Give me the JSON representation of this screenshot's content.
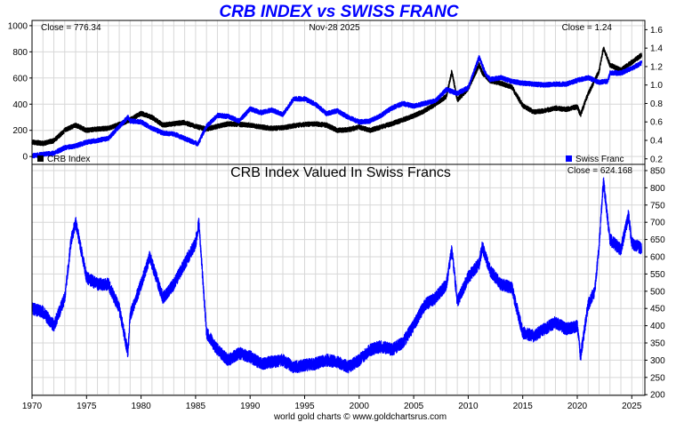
{
  "colors": {
    "crb": "#000000",
    "chf": "#0000ff",
    "ratio": "#0000ff",
    "grid": "#d7d7d7",
    "title": "#0000ff"
  },
  "header": {
    "title": "CRB INDEX vs SWISS FRANC"
  },
  "footer": {
    "credit": "world gold charts © www.goldchartsrus.com"
  },
  "chart_data": [
    {
      "type": "line",
      "title": "CRB INDEX vs SWISS FRANC",
      "date_label": "Nov-28  2025",
      "x_ticks": [
        1970,
        1975,
        1980,
        1985,
        1990,
        1995,
        2000,
        2005,
        2010,
        2015,
        2020,
        2025
      ],
      "xlim": [
        1970,
        2026.2
      ],
      "y_left": {
        "ticks": [
          0,
          200,
          400,
          600,
          800,
          1000
        ],
        "ylim": [
          -60,
          1040
        ]
      },
      "y_right": {
        "ticks": [
          0.2,
          0.4,
          0.6,
          0.8,
          1.0,
          1.2,
          1.4,
          1.6
        ],
        "ylim": [
          0.14,
          1.7
        ]
      },
      "legend": [
        "CRB Index",
        "Swiss Franc"
      ],
      "close_left": "Close = 776.34",
      "close_right": "Close = 1.24",
      "series": [
        {
          "name": "CRB Index",
          "axis": "left",
          "x": [
            1970,
            1971,
            1972,
            1973,
            1974,
            1975,
            1976,
            1977,
            1978,
            1979,
            1980,
            1981,
            1982,
            1983,
            1984,
            1985,
            1986,
            1987,
            1988,
            1989,
            1990,
            1991,
            1992,
            1993,
            1994,
            1995,
            1996,
            1997,
            1998,
            1999,
            2000,
            2001,
            2002,
            2003,
            2004,
            2005,
            2006,
            2007,
            2008,
            2008.5,
            2009,
            2010,
            2011,
            2011.3,
            2012,
            2013,
            2014,
            2015,
            2016,
            2017,
            2018,
            2019,
            2020,
            2020.3,
            2021,
            2022,
            2022.4,
            2023,
            2024,
            2025,
            2025.9
          ],
          "y": [
            110,
            100,
            120,
            200,
            240,
            200,
            210,
            215,
            245,
            280,
            330,
            300,
            240,
            250,
            260,
            230,
            210,
            230,
            250,
            245,
            240,
            225,
            215,
            220,
            235,
            245,
            250,
            240,
            200,
            205,
            225,
            200,
            225,
            250,
            280,
            310,
            350,
            400,
            460,
            650,
            430,
            520,
            700,
            640,
            580,
            560,
            530,
            390,
            340,
            350,
            370,
            360,
            380,
            320,
            480,
            650,
            830,
            700,
            660,
            720,
            776
          ]
        },
        {
          "name": "Swiss Franc",
          "axis": "right",
          "x": [
            1970,
            1971,
            1972,
            1973,
            1974,
            1975,
            1976,
            1977,
            1978,
            1978.8,
            1979,
            1980,
            1981,
            1982,
            1983,
            1984,
            1985.2,
            1986,
            1987,
            1988,
            1989,
            1990,
            1991,
            1992,
            1993,
            1994,
            1995,
            1996,
            1997,
            1998,
            1999,
            2000,
            2001,
            2002,
            2003,
            2004,
            2005,
            2006,
            2007,
            2008,
            2009,
            2010,
            2011,
            2011.6,
            2012,
            2013,
            2014,
            2015,
            2016,
            2017,
            2018,
            2019,
            2020,
            2021,
            2022,
            2022.8,
            2023,
            2024,
            2025,
            2025.9
          ],
          "y": [
            0.23,
            0.25,
            0.26,
            0.32,
            0.34,
            0.38,
            0.4,
            0.42,
            0.55,
            0.65,
            0.61,
            0.6,
            0.53,
            0.48,
            0.47,
            0.42,
            0.36,
            0.55,
            0.67,
            0.66,
            0.61,
            0.74,
            0.7,
            0.73,
            0.68,
            0.85,
            0.85,
            0.79,
            0.69,
            0.72,
            0.65,
            0.6,
            0.61,
            0.67,
            0.75,
            0.8,
            0.77,
            0.8,
            0.83,
            0.95,
            0.91,
            0.97,
            1.3,
            1.12,
            1.06,
            1.08,
            1.04,
            1.02,
            1.01,
            1.0,
            1.01,
            1.01,
            1.05,
            1.08,
            1.03,
            1.04,
            1.13,
            1.13,
            1.18,
            1.24
          ]
        }
      ]
    },
    {
      "type": "line",
      "title": "CRB Index Valued In Swiss Francs",
      "close": "Close = 624.168",
      "x_ticks": [
        1970,
        1975,
        1980,
        1985,
        1990,
        1995,
        2000,
        2005,
        2010,
        2015,
        2020,
        2025
      ],
      "xlim": [
        1970,
        2026.2
      ],
      "y_right": {
        "ticks": [
          200,
          250,
          300,
          350,
          400,
          450,
          500,
          550,
          600,
          650,
          700,
          750,
          800,
          850
        ],
        "ylim": [
          198,
          868
        ]
      },
      "series": [
        {
          "name": "CRB Index Valued In Swiss Francs",
          "x": [
            1970,
            1971,
            1972,
            1973,
            1973.6,
            1974,
            1975,
            1976,
            1977,
            1978,
            1978.8,
            1979,
            1980,
            1980.8,
            1981,
            1982,
            1983,
            1984,
            1985,
            1985.3,
            1986,
            1987,
            1988,
            1989,
            1990,
            1991,
            1992,
            1993,
            1994,
            1995,
            1996,
            1997,
            1998,
            1999,
            2000,
            2001,
            2002,
            2003,
            2004,
            2005,
            2006,
            2007,
            2008,
            2008.5,
            2009,
            2010,
            2011,
            2011.3,
            2012,
            2013,
            2014,
            2015,
            2016,
            2017,
            2018,
            2019,
            2020,
            2020.3,
            2021,
            2021.6,
            2022,
            2022.4,
            2023,
            2024,
            2024.7,
            2025,
            2025.9
          ],
          "y": [
            450,
            440,
            400,
            480,
            650,
            700,
            540,
            520,
            520,
            450,
            320,
            430,
            520,
            600,
            580,
            480,
            520,
            580,
            640,
            700,
            380,
            330,
            300,
            320,
            310,
            290,
            295,
            300,
            280,
            285,
            290,
            300,
            295,
            280,
            300,
            330,
            340,
            330,
            350,
            400,
            460,
            480,
            520,
            620,
            470,
            540,
            580,
            630,
            560,
            520,
            510,
            380,
            370,
            390,
            410,
            390,
            400,
            310,
            460,
            500,
            630,
            820,
            650,
            620,
            720,
            640,
            624
          ]
        }
      ]
    }
  ]
}
